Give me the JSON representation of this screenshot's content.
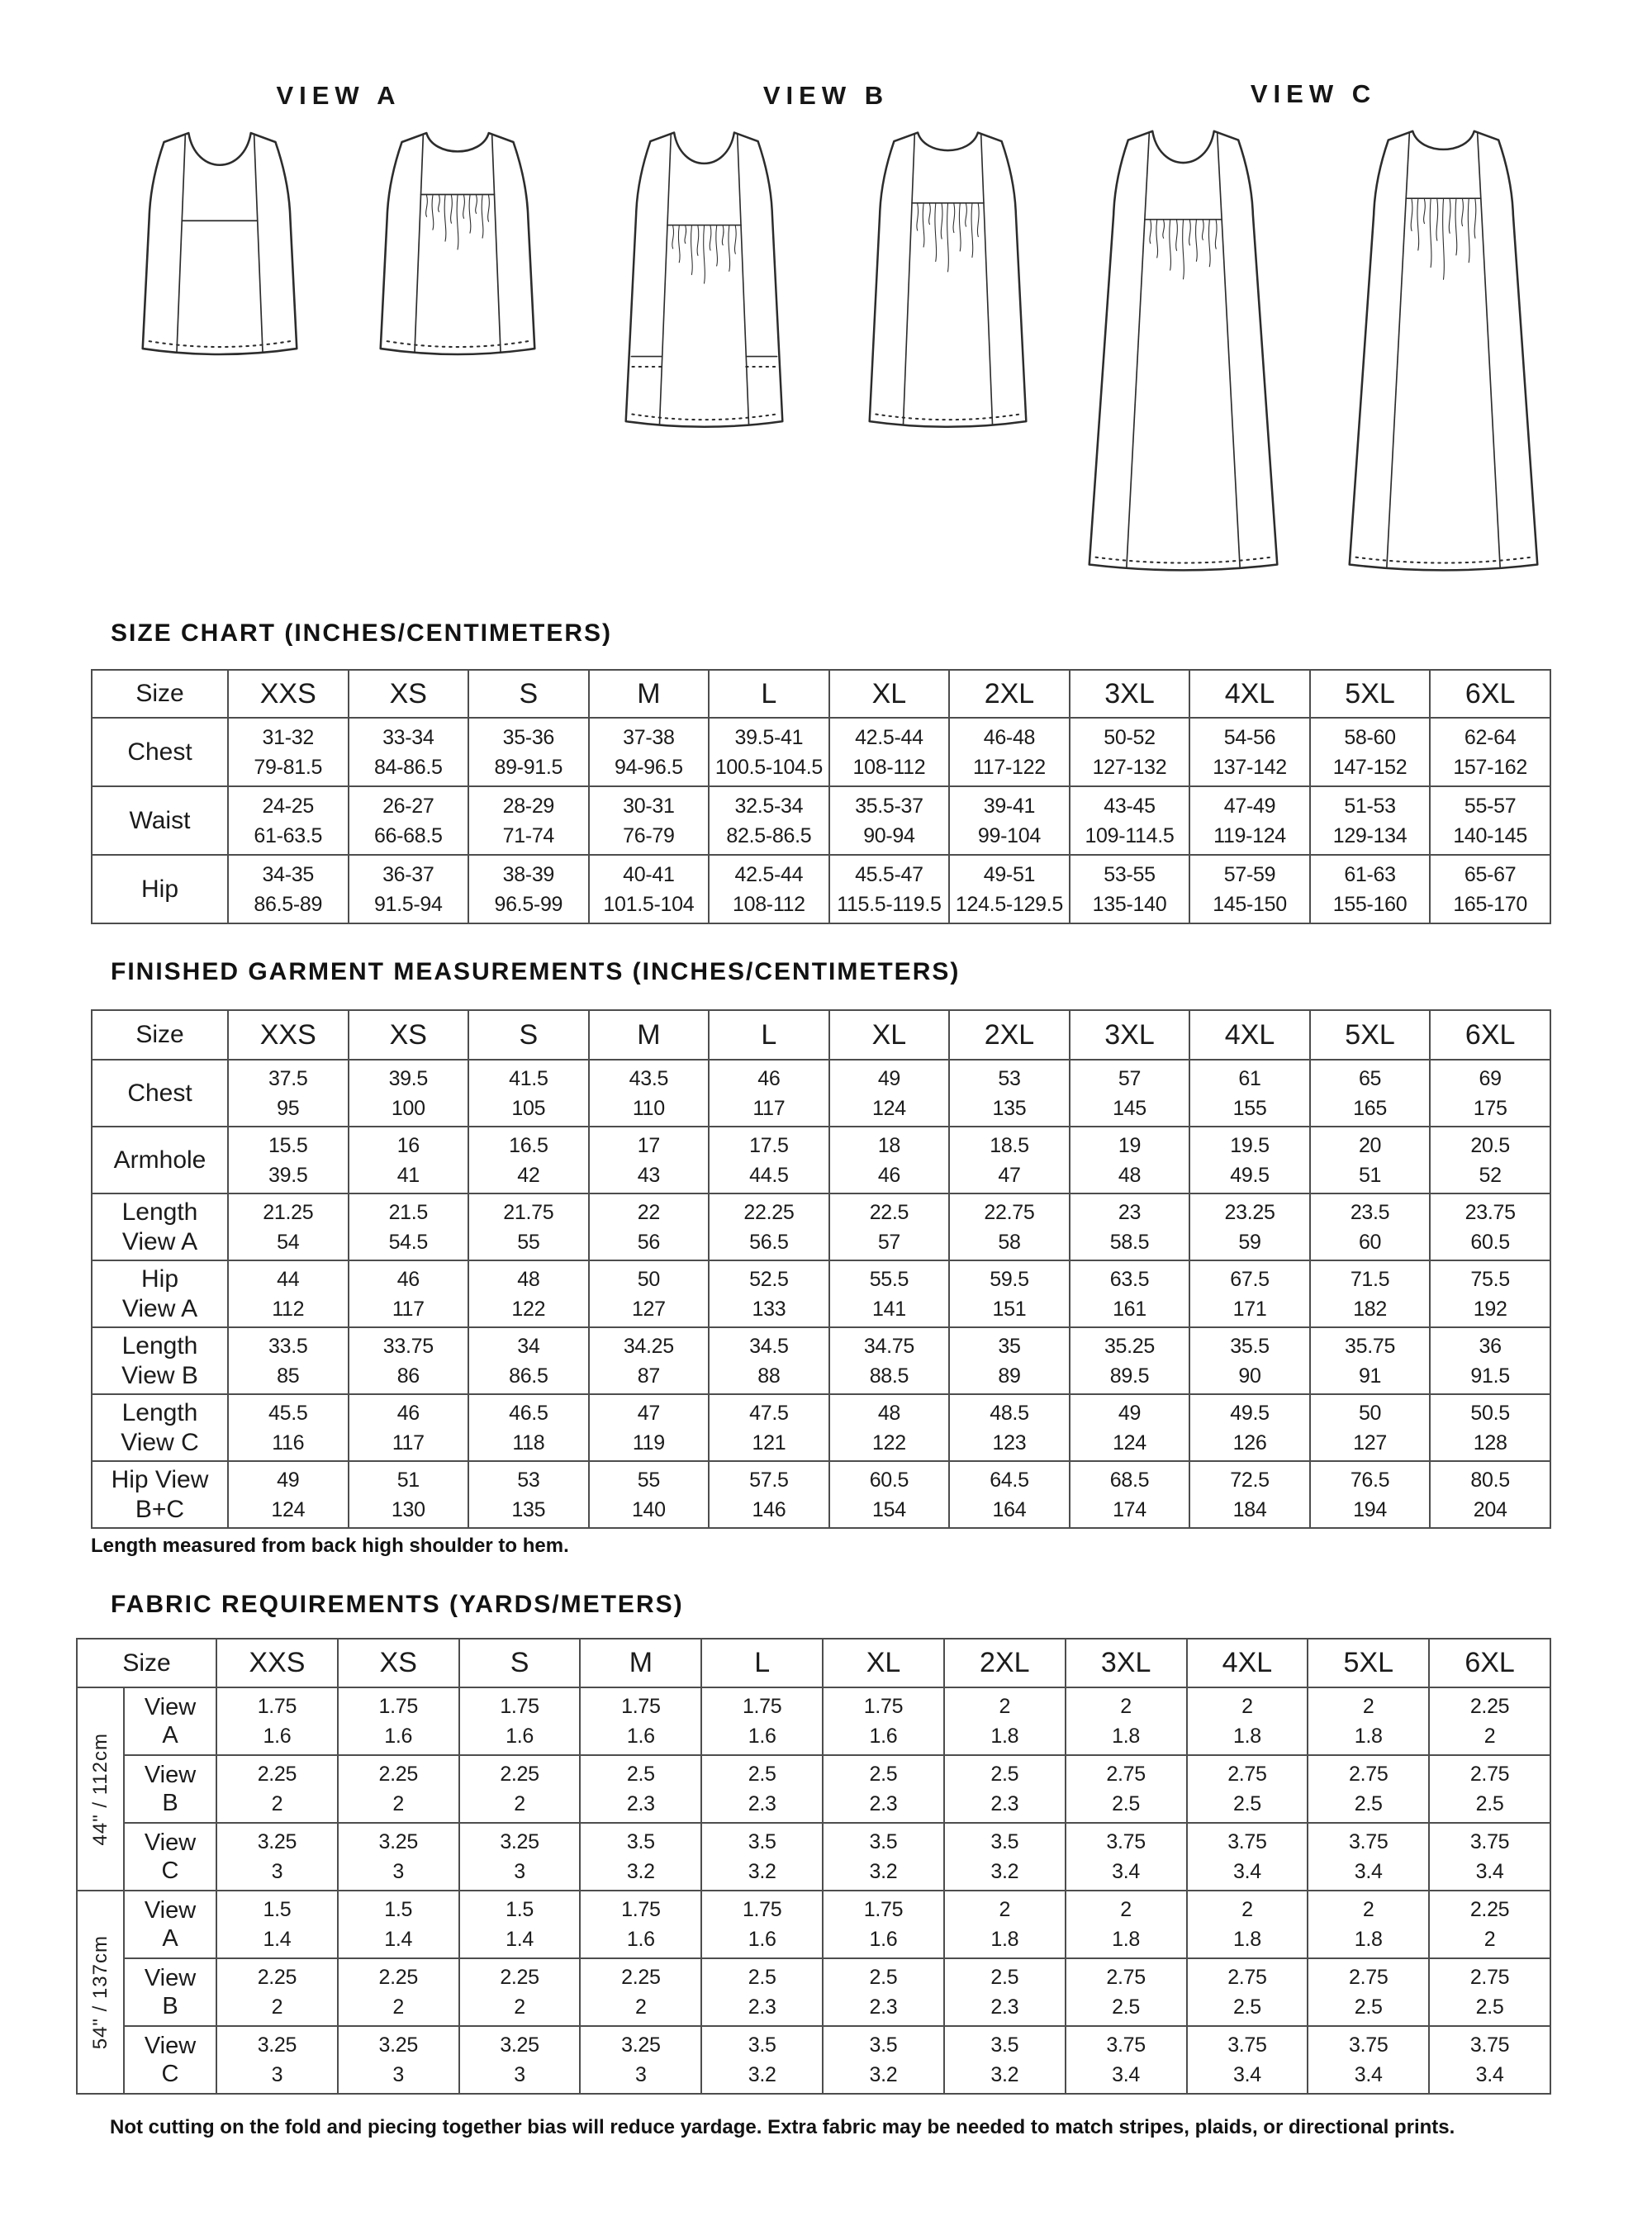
{
  "views": [
    {
      "label": "VIEW A"
    },
    {
      "label": "VIEW B"
    },
    {
      "label": "VIEW C"
    }
  ],
  "size_chart": {
    "title": "SIZE CHART (INCHES/CENTIMETERS)",
    "corner_label": "Size",
    "sizes": [
      "XXS",
      "XS",
      "S",
      "M",
      "L",
      "XL",
      "2XL",
      "3XL",
      "4XL",
      "5XL",
      "6XL"
    ],
    "rows": [
      {
        "label": [
          "Chest"
        ],
        "top": [
          "31-32",
          "33-34",
          "35-36",
          "37-38",
          "39.5-41",
          "42.5-44",
          "46-48",
          "50-52",
          "54-56",
          "58-60",
          "62-64"
        ],
        "bottom": [
          "79-81.5",
          "84-86.5",
          "89-91.5",
          "94-96.5",
          "100.5-104.5",
          "108-112",
          "117-122",
          "127-132",
          "137-142",
          "147-152",
          "157-162"
        ]
      },
      {
        "label": [
          "Waist"
        ],
        "top": [
          "24-25",
          "26-27",
          "28-29",
          "30-31",
          "32.5-34",
          "35.5-37",
          "39-41",
          "43-45",
          "47-49",
          "51-53",
          "55-57"
        ],
        "bottom": [
          "61-63.5",
          "66-68.5",
          "71-74",
          "76-79",
          "82.5-86.5",
          "90-94",
          "99-104",
          "109-114.5",
          "119-124",
          "129-134",
          "140-145"
        ]
      },
      {
        "label": [
          "Hip"
        ],
        "top": [
          "34-35",
          "36-37",
          "38-39",
          "40-41",
          "42.5-44",
          "45.5-47",
          "49-51",
          "53-55",
          "57-59",
          "61-63",
          "65-67"
        ],
        "bottom": [
          "86.5-89",
          "91.5-94",
          "96.5-99",
          "101.5-104",
          "108-112",
          "115.5-119.5",
          "124.5-129.5",
          "135-140",
          "145-150",
          "155-160",
          "165-170"
        ]
      }
    ]
  },
  "finished_measurements": {
    "title": "FINISHED GARMENT MEASUREMENTS (INCHES/CENTIMETERS)",
    "corner_label": "Size",
    "sizes": [
      "XXS",
      "XS",
      "S",
      "M",
      "L",
      "XL",
      "2XL",
      "3XL",
      "4XL",
      "5XL",
      "6XL"
    ],
    "rows": [
      {
        "label": [
          "Chest"
        ],
        "top": [
          "37.5",
          "39.5",
          "41.5",
          "43.5",
          "46",
          "49",
          "53",
          "57",
          "61",
          "65",
          "69"
        ],
        "bottom": [
          "95",
          "100",
          "105",
          "110",
          "117",
          "124",
          "135",
          "145",
          "155",
          "165",
          "175"
        ]
      },
      {
        "label": [
          "Armhole"
        ],
        "top": [
          "15.5",
          "16",
          "16.5",
          "17",
          "17.5",
          "18",
          "18.5",
          "19",
          "19.5",
          "20",
          "20.5"
        ],
        "bottom": [
          "39.5",
          "41",
          "42",
          "43",
          "44.5",
          "46",
          "47",
          "48",
          "49.5",
          "51",
          "52"
        ]
      },
      {
        "label": [
          "Length",
          "View A"
        ],
        "top": [
          "21.25",
          "21.5",
          "21.75",
          "22",
          "22.25",
          "22.5",
          "22.75",
          "23",
          "23.25",
          "23.5",
          "23.75"
        ],
        "bottom": [
          "54",
          "54.5",
          "55",
          "56",
          "56.5",
          "57",
          "58",
          "58.5",
          "59",
          "60",
          "60.5"
        ]
      },
      {
        "label": [
          "Hip",
          "View A"
        ],
        "top": [
          "44",
          "46",
          "48",
          "50",
          "52.5",
          "55.5",
          "59.5",
          "63.5",
          "67.5",
          "71.5",
          "75.5"
        ],
        "bottom": [
          "112",
          "117",
          "122",
          "127",
          "133",
          "141",
          "151",
          "161",
          "171",
          "182",
          "192"
        ]
      },
      {
        "label": [
          "Length",
          "View B"
        ],
        "top": [
          "33.5",
          "33.75",
          "34",
          "34.25",
          "34.5",
          "34.75",
          "35",
          "35.25",
          "35.5",
          "35.75",
          "36"
        ],
        "bottom": [
          "85",
          "86",
          "86.5",
          "87",
          "88",
          "88.5",
          "89",
          "89.5",
          "90",
          "91",
          "91.5"
        ]
      },
      {
        "label": [
          "Length",
          "View C"
        ],
        "top": [
          "45.5",
          "46",
          "46.5",
          "47",
          "47.5",
          "48",
          "48.5",
          "49",
          "49.5",
          "50",
          "50.5"
        ],
        "bottom": [
          "116",
          "117",
          "118",
          "119",
          "121",
          "122",
          "123",
          "124",
          "126",
          "127",
          "128"
        ]
      },
      {
        "label": [
          "Hip View",
          "B+C"
        ],
        "top": [
          "49",
          "51",
          "53",
          "55",
          "57.5",
          "60.5",
          "64.5",
          "68.5",
          "72.5",
          "76.5",
          "80.5"
        ],
        "bottom": [
          "124",
          "130",
          "135",
          "140",
          "146",
          "154",
          "164",
          "174",
          "184",
          "194",
          "204"
        ]
      }
    ],
    "note": "Length measured from back high shoulder to hem."
  },
  "fabric_requirements": {
    "title": "FABRIC REQUIREMENTS (YARDS/METERS)",
    "corner_label": "Size",
    "sizes": [
      "XXS",
      "XS",
      "S",
      "M",
      "L",
      "XL",
      "2XL",
      "3XL",
      "4XL",
      "5XL",
      "6XL"
    ],
    "groups": [
      {
        "width_label": "44\" / 112cm",
        "rows": [
          {
            "label": [
              "View",
              "A"
            ],
            "yards": [
              "1.75",
              "1.75",
              "1.75",
              "1.75",
              "1.75",
              "1.75",
              "2",
              "2",
              "2",
              "2",
              "2.25"
            ],
            "meters": [
              "1.6",
              "1.6",
              "1.6",
              "1.6",
              "1.6",
              "1.6",
              "1.8",
              "1.8",
              "1.8",
              "1.8",
              "2"
            ]
          },
          {
            "label": [
              "View",
              "B"
            ],
            "yards": [
              "2.25",
              "2.25",
              "2.25",
              "2.5",
              "2.5",
              "2.5",
              "2.5",
              "2.75",
              "2.75",
              "2.75",
              "2.75"
            ],
            "meters": [
              "2",
              "2",
              "2",
              "2.3",
              "2.3",
              "2.3",
              "2.3",
              "2.5",
              "2.5",
              "2.5",
              "2.5"
            ]
          },
          {
            "label": [
              "View",
              "C"
            ],
            "yards": [
              "3.25",
              "3.25",
              "3.25",
              "3.5",
              "3.5",
              "3.5",
              "3.5",
              "3.75",
              "3.75",
              "3.75",
              "3.75"
            ],
            "meters": [
              "3",
              "3",
              "3",
              "3.2",
              "3.2",
              "3.2",
              "3.2",
              "3.4",
              "3.4",
              "3.4",
              "3.4"
            ]
          }
        ]
      },
      {
        "width_label": "54\" / 137cm",
        "rows": [
          {
            "label": [
              "View",
              "A"
            ],
            "yards": [
              "1.5",
              "1.5",
              "1.5",
              "1.75",
              "1.75",
              "1.75",
              "2",
              "2",
              "2",
              "2",
              "2.25"
            ],
            "meters": [
              "1.4",
              "1.4",
              "1.4",
              "1.6",
              "1.6",
              "1.6",
              "1.8",
              "1.8",
              "1.8",
              "1.8",
              "2"
            ]
          },
          {
            "label": [
              "View",
              "B"
            ],
            "yards": [
              "2.25",
              "2.25",
              "2.25",
              "2.25",
              "2.5",
              "2.5",
              "2.5",
              "2.75",
              "2.75",
              "2.75",
              "2.75"
            ],
            "meters": [
              "2",
              "2",
              "2",
              "2",
              "2.3",
              "2.3",
              "2.3",
              "2.5",
              "2.5",
              "2.5",
              "2.5"
            ]
          },
          {
            "label": [
              "View",
              "C"
            ],
            "yards": [
              "3.25",
              "3.25",
              "3.25",
              "3.25",
              "3.5",
              "3.5",
              "3.5",
              "3.75",
              "3.75",
              "3.75",
              "3.75"
            ],
            "meters": [
              "3",
              "3",
              "3",
              "3",
              "3.2",
              "3.2",
              "3.2",
              "3.4",
              "3.4",
              "3.4",
              "3.4"
            ]
          }
        ]
      }
    ],
    "note": "Not cutting on the fold and piecing together bias will reduce yardage. Extra fabric may be needed to match stripes, plaids, or directional prints."
  }
}
